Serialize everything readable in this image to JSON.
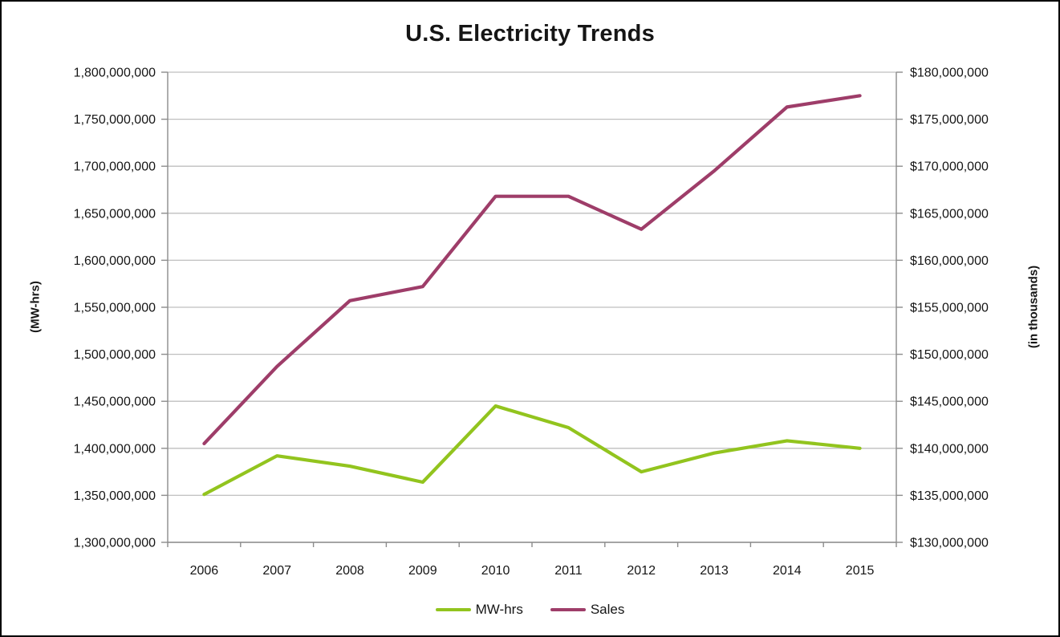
{
  "window": {
    "background_color": "#ffffff",
    "border_color": "#000000"
  },
  "chart_data": {
    "type": "line",
    "title": "U.S. Electricity Trends",
    "categories": [
      "2006",
      "2007",
      "2008",
      "2009",
      "2010",
      "2011",
      "2012",
      "2013",
      "2014",
      "2015"
    ],
    "series": [
      {
        "name": "MW-hrs",
        "axis": "left",
        "color": "#92C41E",
        "values": [
          1351000000,
          1392000000,
          1381000000,
          1364000000,
          1445000000,
          1422000000,
          1375000000,
          1395000000,
          1408000000,
          1400000000
        ]
      },
      {
        "name": "Sales",
        "axis": "right",
        "color": "#9E3D69",
        "values": [
          140500000,
          148700000,
          155700000,
          157200000,
          166800000,
          166800000,
          163300000,
          169500000,
          176300000,
          177500000
        ]
      }
    ],
    "left_axis": {
      "label": "(MW-hrs)",
      "min": 1300000000,
      "max": 1800000000,
      "step": 50000000,
      "tick_labels": [
        "1,800,000,000",
        "1,750,000,000",
        "1,700,000,000",
        "1,650,000,000",
        "1,600,000,000",
        "1,550,000,000",
        "1,500,000,000",
        "1,450,000,000",
        "1,400,000,000",
        "1,350,000,000",
        "1,300,000,000"
      ]
    },
    "right_axis": {
      "label": "(in thousands)",
      "min": 130000000,
      "max": 180000000,
      "step": 5000000,
      "tick_labels": [
        "$180,000,000",
        "$175,000,000",
        "$170,000,000",
        "$165,000,000",
        "$160,000,000",
        "$155,000,000",
        "$150,000,000",
        "$145,000,000",
        "$140,000,000",
        "$135,000,000",
        "$130,000,000"
      ]
    },
    "grid": true,
    "gridline_color": "#BFBFBF",
    "axis_line_color": "#8C8C8C",
    "tick_label_color": "#151515",
    "legend": {
      "position": "bottom",
      "entries": [
        "MW-hrs",
        "Sales"
      ]
    }
  }
}
